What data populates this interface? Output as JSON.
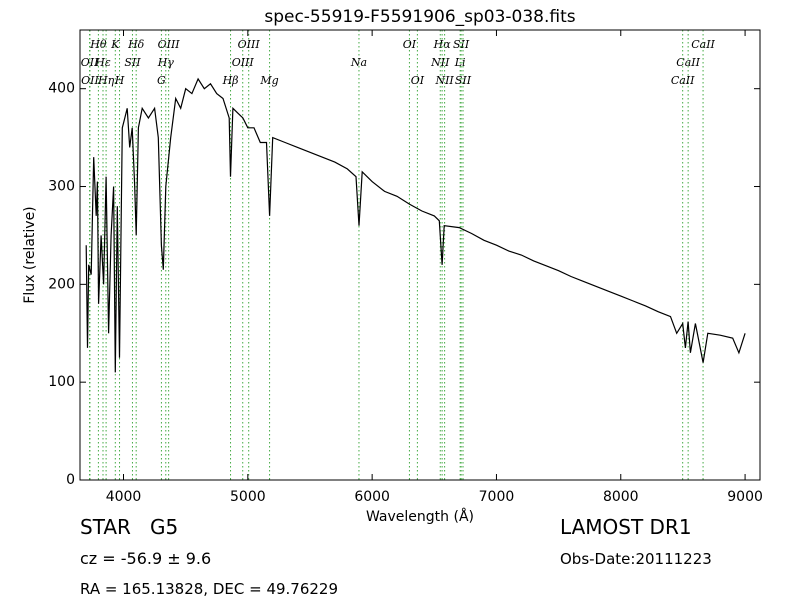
{
  "chart_data": {
    "type": "line",
    "title": "spec-55919-F5591906_sp03-038.fits",
    "x_label": "Wavelength (Å)",
    "y_label": "Flux (relative)",
    "xlim": [
      3650,
      9120
    ],
    "ylim": [
      0,
      460
    ],
    "xticks": [
      4000,
      5000,
      6000,
      7000,
      8000,
      9000
    ],
    "yticks": [
      0,
      100,
      200,
      300,
      400
    ],
    "series": [
      {
        "color": "#000000",
        "x": [
          3700,
          3710,
          3720,
          3740,
          3760,
          3780,
          3790,
          3800,
          3820,
          3840,
          3860,
          3880,
          3900,
          3920,
          3934,
          3950,
          3968,
          3990,
          4010,
          4030,
          4050,
          4070,
          4090,
          4102,
          4120,
          4150,
          4200,
          4250,
          4280,
          4305,
          4320,
          4340,
          4380,
          4420,
          4460,
          4500,
          4550,
          4600,
          4650,
          4700,
          4750,
          4800,
          4850,
          4861,
          4880,
          4920,
          4960,
          5000,
          5050,
          5100,
          5150,
          5175,
          5200,
          5300,
          5400,
          5500,
          5600,
          5700,
          5800,
          5870,
          5894,
          5920,
          6000,
          6100,
          6200,
          6300,
          6400,
          6500,
          6540,
          6563,
          6580,
          6700,
          6800,
          6900,
          7000,
          7100,
          7200,
          7300,
          7400,
          7500,
          7600,
          7700,
          7800,
          7900,
          8000,
          8100,
          8200,
          8300,
          8400,
          8450,
          8498,
          8520,
          8542,
          8560,
          8600,
          8662,
          8700,
          8800,
          8900,
          8950,
          9000
        ],
        "values": [
          240,
          135,
          220,
          210,
          330,
          270,
          305,
          180,
          250,
          200,
          310,
          150,
          250,
          300,
          110,
          280,
          125,
          360,
          370,
          380,
          340,
          360,
          300,
          250,
          360,
          380,
          370,
          380,
          350,
          240,
          215,
          300,
          350,
          390,
          380,
          400,
          395,
          410,
          400,
          405,
          395,
          390,
          370,
          310,
          380,
          375,
          370,
          360,
          360,
          345,
          345,
          270,
          350,
          345,
          340,
          335,
          330,
          325,
          318,
          310,
          260,
          315,
          305,
          295,
          290,
          282,
          275,
          270,
          265,
          220,
          260,
          258,
          252,
          245,
          240,
          234,
          230,
          224,
          219,
          214,
          208,
          203,
          198,
          193,
          188,
          183,
          178,
          172,
          167,
          150,
          160,
          135,
          162,
          130,
          160,
          120,
          150,
          148,
          145,
          130,
          150
        ]
      }
    ],
    "line_color": "#44aa44",
    "lines": [
      {
        "name": "Hθ",
        "wavelength": 3798,
        "row": 0
      },
      {
        "name": "K",
        "wavelength": 3934,
        "row": 0
      },
      {
        "name": "Hδ",
        "wavelength": 4102,
        "row": 0
      },
      {
        "name": "OIII",
        "wavelength": 4363,
        "row": 0
      },
      {
        "name": "OIII",
        "wavelength": 5007,
        "row": 0
      },
      {
        "name": "OI",
        "wavelength": 6300,
        "row": 0
      },
      {
        "name": "Hα",
        "wavelength": 6563,
        "row": 0
      },
      {
        "name": "SII",
        "wavelength": 6716,
        "row": 0
      },
      {
        "name": "CaII",
        "wavelength": 8662,
        "row": 0
      },
      {
        "name": "OII",
        "wavelength": 3727,
        "row": 1
      },
      {
        "name": "Hε",
        "wavelength": 3835,
        "row": 1
      },
      {
        "name": "SII",
        "wavelength": 4072,
        "row": 1
      },
      {
        "name": "Hγ",
        "wavelength": 4340,
        "row": 1
      },
      {
        "name": "OIII",
        "wavelength": 4959,
        "row": 1
      },
      {
        "name": "Na",
        "wavelength": 5894,
        "row": 1
      },
      {
        "name": "NII",
        "wavelength": 6548,
        "row": 1
      },
      {
        "name": "Li",
        "wavelength": 6708,
        "row": 1
      },
      {
        "name": "CaII",
        "wavelength": 8542,
        "row": 1
      },
      {
        "name": "OII",
        "wavelength": 3730,
        "row": 2
      },
      {
        "name": "Hη",
        "wavelength": 3860,
        "row": 2
      },
      {
        "name": "H",
        "wavelength": 3968,
        "row": 2
      },
      {
        "name": "G",
        "wavelength": 4305,
        "row": 2
      },
      {
        "name": "Hβ",
        "wavelength": 4861,
        "row": 2
      },
      {
        "name": "Mg",
        "wavelength": 5175,
        "row": 2
      },
      {
        "name": "OI",
        "wavelength": 6364,
        "row": 2
      },
      {
        "name": "NII",
        "wavelength": 6583,
        "row": 2
      },
      {
        "name": "SII",
        "wavelength": 6731,
        "row": 2
      },
      {
        "name": "CaII",
        "wavelength": 8498,
        "row": 2
      }
    ]
  },
  "info": {
    "object": "STAR   G5",
    "redshift": "cz = -56.9 ± 9.6",
    "position": "RA = 165.13828, DEC = 49.76229",
    "survey": "LAMOST DR1",
    "obs_date": "Obs-Date:20111223"
  }
}
